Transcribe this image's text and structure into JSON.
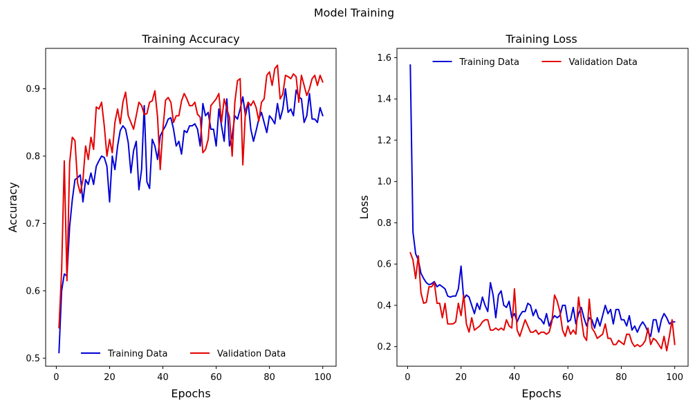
{
  "figure": {
    "title": "Model Training"
  },
  "colors": {
    "training": "#0000d6",
    "validation": "#e40000"
  },
  "chart_data": [
    {
      "type": "line",
      "title": "Training Accuracy",
      "xlabel": "Epochs",
      "ylabel": "Accuracy",
      "xlim": [
        -4,
        105
      ],
      "ylim": [
        0.488,
        0.96
      ],
      "xticks": [
        0,
        20,
        40,
        60,
        80,
        100
      ],
      "yticks": [
        0.5,
        0.6,
        0.7,
        0.8,
        0.9
      ],
      "grid": false,
      "legend_position": "lower-center",
      "x": [
        1,
        2,
        3,
        4,
        5,
        6,
        7,
        8,
        9,
        10,
        11,
        12,
        13,
        14,
        15,
        16,
        17,
        18,
        19,
        20,
        21,
        22,
        23,
        24,
        25,
        26,
        27,
        28,
        29,
        30,
        31,
        32,
        33,
        34,
        35,
        36,
        37,
        38,
        39,
        40,
        41,
        42,
        43,
        44,
        45,
        46,
        47,
        48,
        49,
        50,
        51,
        52,
        53,
        54,
        55,
        56,
        57,
        58,
        59,
        60,
        61,
        62,
        63,
        64,
        65,
        66,
        67,
        68,
        69,
        70,
        71,
        72,
        73,
        74,
        75,
        76,
        77,
        78,
        79,
        80,
        81,
        82,
        83,
        84,
        85,
        86,
        87,
        88,
        89,
        90,
        91,
        92,
        93,
        94,
        95,
        96,
        97,
        98,
        99,
        100
      ],
      "series": [
        {
          "name": "Training Data",
          "color_key": "training",
          "values": [
            0.508,
            0.6,
            0.625,
            0.622,
            0.695,
            0.735,
            0.765,
            0.768,
            0.772,
            0.732,
            0.765,
            0.758,
            0.775,
            0.758,
            0.785,
            0.793,
            0.8,
            0.798,
            0.785,
            0.732,
            0.8,
            0.78,
            0.815,
            0.838,
            0.845,
            0.84,
            0.82,
            0.775,
            0.808,
            0.822,
            0.75,
            0.78,
            0.875,
            0.762,
            0.752,
            0.825,
            0.815,
            0.795,
            0.83,
            0.838,
            0.845,
            0.855,
            0.857,
            0.84,
            0.815,
            0.822,
            0.803,
            0.838,
            0.835,
            0.845,
            0.845,
            0.848,
            0.84,
            0.815,
            0.878,
            0.86,
            0.865,
            0.84,
            0.84,
            0.815,
            0.87,
            0.845,
            0.822,
            0.885,
            0.815,
            0.83,
            0.86,
            0.855,
            0.87,
            0.888,
            0.86,
            0.88,
            0.84,
            0.822,
            0.838,
            0.855,
            0.865,
            0.85,
            0.835,
            0.86,
            0.855,
            0.848,
            0.878,
            0.855,
            0.87,
            0.9,
            0.865,
            0.87,
            0.86,
            0.898,
            0.888,
            0.885,
            0.85,
            0.86,
            0.893,
            0.855,
            0.855,
            0.85,
            0.872,
            0.86
          ]
        },
        {
          "name": "Validation Data",
          "color_key": "validation",
          "values": [
            0.545,
            0.63,
            0.793,
            0.615,
            0.79,
            0.828,
            0.823,
            0.76,
            0.745,
            0.765,
            0.815,
            0.795,
            0.828,
            0.81,
            0.873,
            0.87,
            0.88,
            0.845,
            0.8,
            0.825,
            0.805,
            0.85,
            0.87,
            0.848,
            0.88,
            0.895,
            0.86,
            0.85,
            0.84,
            0.86,
            0.88,
            0.875,
            0.862,
            0.863,
            0.88,
            0.882,
            0.897,
            0.858,
            0.78,
            0.84,
            0.883,
            0.887,
            0.88,
            0.85,
            0.86,
            0.86,
            0.882,
            0.893,
            0.885,
            0.875,
            0.875,
            0.88,
            0.862,
            0.858,
            0.805,
            0.81,
            0.825,
            0.875,
            0.88,
            0.885,
            0.893,
            0.85,
            0.885,
            0.87,
            0.858,
            0.8,
            0.88,
            0.912,
            0.915,
            0.787,
            0.868,
            0.88,
            0.875,
            0.882,
            0.872,
            0.852,
            0.88,
            0.885,
            0.92,
            0.925,
            0.905,
            0.93,
            0.935,
            0.885,
            0.892,
            0.92,
            0.918,
            0.915,
            0.922,
            0.918,
            0.88,
            0.92,
            0.905,
            0.89,
            0.9,
            0.915,
            0.92,
            0.905,
            0.92,
            0.91
          ]
        }
      ]
    },
    {
      "type": "line",
      "title": "Training Loss",
      "xlabel": "Epochs",
      "ylabel": "Loss",
      "xlim": [
        -4,
        105
      ],
      "ylim": [
        0.105,
        1.645
      ],
      "xticks": [
        0,
        20,
        40,
        60,
        80,
        100
      ],
      "yticks": [
        0.2,
        0.4,
        0.6,
        0.8,
        1.0,
        1.2,
        1.4,
        1.6
      ],
      "grid": false,
      "legend_position": "upper-center",
      "x": [
        1,
        2,
        3,
        4,
        5,
        6,
        7,
        8,
        9,
        10,
        11,
        12,
        13,
        14,
        15,
        16,
        17,
        18,
        19,
        20,
        21,
        22,
        23,
        24,
        25,
        26,
        27,
        28,
        29,
        30,
        31,
        32,
        33,
        34,
        35,
        36,
        37,
        38,
        39,
        40,
        41,
        42,
        43,
        44,
        45,
        46,
        47,
        48,
        49,
        50,
        51,
        52,
        53,
        54,
        55,
        56,
        57,
        58,
        59,
        60,
        61,
        62,
        63,
        64,
        65,
        66,
        67,
        68,
        69,
        70,
        71,
        72,
        73,
        74,
        75,
        76,
        77,
        78,
        79,
        80,
        81,
        82,
        83,
        84,
        85,
        86,
        87,
        88,
        89,
        90,
        91,
        92,
        93,
        94,
        95,
        96,
        97,
        98,
        99,
        100
      ],
      "series": [
        {
          "name": "Training Data",
          "color_key": "training",
          "values": [
            1.565,
            0.755,
            0.65,
            0.62,
            0.555,
            0.53,
            0.51,
            0.5,
            0.505,
            0.515,
            0.49,
            0.5,
            0.49,
            0.48,
            0.445,
            0.44,
            0.445,
            0.445,
            0.48,
            0.59,
            0.43,
            0.45,
            0.44,
            0.4,
            0.36,
            0.41,
            0.38,
            0.44,
            0.4,
            0.37,
            0.51,
            0.45,
            0.34,
            0.45,
            0.47,
            0.4,
            0.39,
            0.42,
            0.34,
            0.36,
            0.32,
            0.35,
            0.37,
            0.37,
            0.41,
            0.4,
            0.35,
            0.38,
            0.34,
            0.33,
            0.31,
            0.36,
            0.3,
            0.33,
            0.35,
            0.34,
            0.35,
            0.4,
            0.4,
            0.32,
            0.33,
            0.39,
            0.31,
            0.36,
            0.39,
            0.34,
            0.3,
            0.34,
            0.33,
            0.29,
            0.34,
            0.3,
            0.35,
            0.4,
            0.36,
            0.38,
            0.31,
            0.38,
            0.38,
            0.33,
            0.33,
            0.3,
            0.35,
            0.28,
            0.3,
            0.27,
            0.3,
            0.32,
            0.3,
            0.27,
            0.25,
            0.33,
            0.33,
            0.27,
            0.33,
            0.36,
            0.34,
            0.31,
            0.32,
            0.32
          ]
        },
        {
          "name": "Validation Data",
          "color_key": "validation",
          "values": [
            0.655,
            0.62,
            0.53,
            0.64,
            0.46,
            0.41,
            0.415,
            0.49,
            0.49,
            0.51,
            0.41,
            0.41,
            0.34,
            0.41,
            0.31,
            0.31,
            0.31,
            0.32,
            0.41,
            0.35,
            0.45,
            0.31,
            0.27,
            0.34,
            0.28,
            0.29,
            0.3,
            0.32,
            0.33,
            0.33,
            0.28,
            0.28,
            0.29,
            0.28,
            0.29,
            0.28,
            0.33,
            0.3,
            0.29,
            0.48,
            0.28,
            0.25,
            0.29,
            0.33,
            0.3,
            0.27,
            0.27,
            0.28,
            0.26,
            0.27,
            0.27,
            0.26,
            0.27,
            0.32,
            0.45,
            0.42,
            0.37,
            0.28,
            0.25,
            0.3,
            0.26,
            0.28,
            0.26,
            0.44,
            0.34,
            0.25,
            0.23,
            0.43,
            0.29,
            0.27,
            0.24,
            0.25,
            0.26,
            0.31,
            0.24,
            0.24,
            0.21,
            0.21,
            0.23,
            0.22,
            0.21,
            0.26,
            0.26,
            0.22,
            0.2,
            0.21,
            0.2,
            0.21,
            0.23,
            0.29,
            0.21,
            0.24,
            0.23,
            0.21,
            0.19,
            0.25,
            0.18,
            0.25,
            0.33,
            0.21
          ]
        }
      ]
    }
  ]
}
